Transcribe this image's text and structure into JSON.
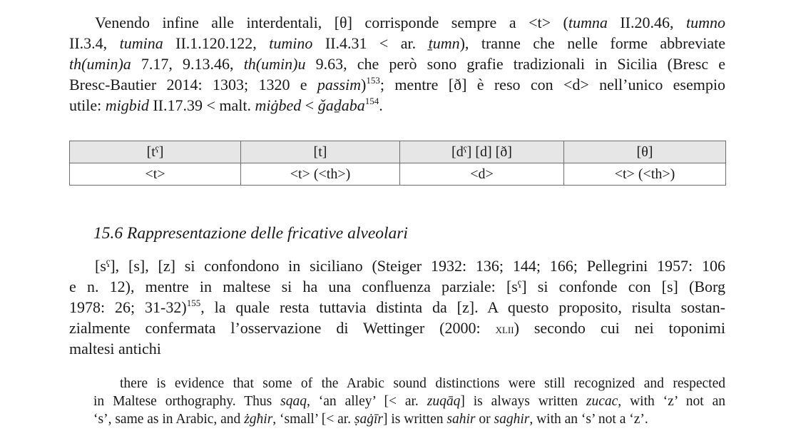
{
  "paragraph_1": {
    "lines": [
      [
        {
          "t": "Venendo infine alle interdentali, [θ] corrisponde sempre a <t> ("
        },
        {
          "t": "tumna",
          "s": "i"
        },
        {
          "t": " II.20.46, "
        },
        {
          "t": "tumno",
          "s": "i"
        }
      ],
      [
        {
          "t": "II.3.4, "
        },
        {
          "t": "tumina",
          "s": "i"
        },
        {
          "t": " II.1.120.122, "
        },
        {
          "t": "tumino",
          "s": "i"
        },
        {
          "t": " II.4.31 < ar. "
        },
        {
          "t": "ṯumn",
          "s": "i"
        },
        {
          "t": "), tranne che nelle forme abbreviate"
        }
      ],
      [
        {
          "t": "th(umin)a",
          "s": "i"
        },
        {
          "t": " 7.17, 9.13.46, "
        },
        {
          "t": "th(umin)u",
          "s": "i"
        },
        {
          "t": " 9.63, che però sono grafie tradizionali in Sicilia (Bresc e"
        }
      ],
      [
        {
          "t": "Bresc-Bautier 2014: 1303; 1320 e "
        },
        {
          "t": "passim",
          "s": "i"
        },
        {
          "t": ")"
        },
        {
          "t": "153",
          "s": "sup"
        },
        {
          "t": "; mentre [ð] è reso con <d> nell’unico esempio"
        }
      ],
      [
        {
          "t": "utile: "
        },
        {
          "t": "migbid",
          "s": "i"
        },
        {
          "t": " II.17.39 < malt. "
        },
        {
          "t": "miġbed",
          "s": "i"
        },
        {
          "t": " < "
        },
        {
          "t": "ǧaḏaba",
          "s": "i"
        },
        {
          "t": "154",
          "s": "sup"
        },
        {
          "t": "."
        }
      ]
    ]
  },
  "table": {
    "headers": [
      "[tˤ]",
      "[t]",
      "[dˤ] [d] [ð]",
      "[θ]"
    ],
    "row": [
      "<t>",
      "<t> (<th>)",
      "<d>",
      "<t> (<th>)"
    ]
  },
  "section_heading": "15.6 Rappresentazione delle fricative alveolari",
  "paragraph_2": {
    "lines": [
      [
        {
          "t": "[sˤ], [s], [z] si confondono in siciliano (Steiger 1932: 136; 144; 166; Pellegrini 1957: 106"
        }
      ],
      [
        {
          "t": "e n. 12), mentre in maltese si ha una confluenza parziale: [sˤ] si confonde con [s] (Borg"
        }
      ],
      [
        {
          "t": "1978: 26; 31-32)"
        },
        {
          "t": "155",
          "s": "sup"
        },
        {
          "t": ", la quale resta tuttavia distinta da [z]. A questo proposito, risulta sostan-"
        }
      ],
      [
        {
          "t": "zialmente confermata l’osservazione di Wettinger (2000: "
        },
        {
          "t": "xlii",
          "s": "sc"
        },
        {
          "t": ") secondo cui nei toponimi"
        }
      ],
      [
        {
          "t": "maltesi antichi"
        }
      ]
    ]
  },
  "quote": {
    "lines": [
      [
        {
          "t": "there is evidence that some of the Arabic sound distinctions were still recognized and respected"
        }
      ],
      [
        {
          "t": "in Maltese orthography. Thus "
        },
        {
          "t": "sqaq",
          "s": "i"
        },
        {
          "t": ", ‘an alley’ [< ar. "
        },
        {
          "t": "zuqāq",
          "s": "i"
        },
        {
          "t": "] is always written "
        },
        {
          "t": "zucac",
          "s": "i"
        },
        {
          "t": ", with ‘z’ not an"
        }
      ],
      [
        {
          "t": "‘s’, same as in Arabic, and "
        },
        {
          "t": "żgħir",
          "s": "i"
        },
        {
          "t": ", ‘small’ [< ar. "
        },
        {
          "t": "ṣaġīr",
          "s": "i"
        },
        {
          "t": "] is written "
        },
        {
          "t": "sahir",
          "s": "i"
        },
        {
          "t": " or "
        },
        {
          "t": "saghir",
          "s": "i"
        },
        {
          "t": ", with an ‘s’ not a ‘z’."
        }
      ]
    ]
  }
}
